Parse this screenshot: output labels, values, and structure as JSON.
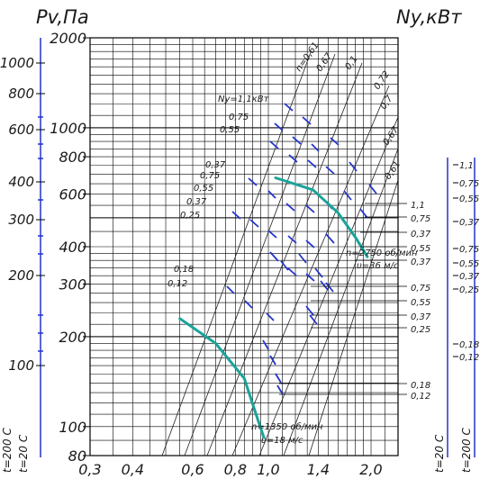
{
  "chart_data": {
    "type": "line",
    "title_left": "Pv,Па",
    "title_right": "Ny,кВт",
    "xlabel": "",
    "x_ticks": [
      "0,3",
      "0,4",
      "0,6",
      "0,8",
      "1,0",
      "1,4",
      "2,0"
    ],
    "y_ticks_main": [
      "2000",
      "1000",
      "800",
      "600",
      "400",
      "300",
      "200",
      "100",
      "80"
    ],
    "left_scale_ticks": [
      "1000",
      "800",
      "600",
      "400",
      "300",
      "200",
      "100"
    ],
    "left_scale_labels": [
      "t=200 С",
      "t=20 С"
    ],
    "right_scale_labels": [
      "t=20 С",
      "t=200 С"
    ],
    "right_scale_ticks": [
      "1,1",
      "0,75",
      "0,55",
      "0,37",
      "0,75",
      "0,55",
      "0,37",
      "0,25",
      "0,18",
      "0,12"
    ],
    "ray_labels": [
      "n=0,61",
      "0,67",
      "0,1",
      "0,72",
      "0,7",
      "0,67",
      "0,61"
    ],
    "power_labels_top": [
      "Ny=1,1кВт",
      "0,75",
      "0,55"
    ],
    "power_labels_mid": [
      "0,37",
      "0,75",
      "0,55",
      "0,37",
      "0,25"
    ],
    "power_labels_low": [
      "0,18",
      "0,12"
    ],
    "bracket_labels": [
      "1,1",
      "0,75",
      "0,37",
      "0,55",
      "0,37",
      "0,75",
      "0,55",
      "0,37",
      "0,25",
      "0,18",
      "0,12"
    ],
    "annotation_high": {
      "speed": "n=2750 об/мин",
      "velocity": "υ=36 м/с"
    },
    "annotation_low": {
      "speed": "n=1350 об/мин",
      "velocity": "υ=18 м/с"
    },
    "series": [
      {
        "values": [
          [
            0.55,
            230
          ],
          [
            0.7,
            190
          ],
          [
            0.85,
            145
          ],
          [
            0.92,
            110
          ],
          [
            0.97,
            92
          ]
        ]
      },
      {
        "values": [
          [
            1.05,
            680
          ],
          [
            1.35,
            620
          ],
          [
            1.6,
            520
          ],
          [
            1.8,
            430
          ],
          [
            1.95,
            370
          ]
        ]
      }
    ]
  }
}
